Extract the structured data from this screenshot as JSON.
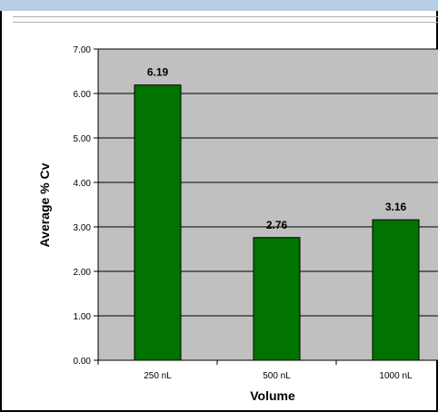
{
  "chart_data": {
    "type": "bar",
    "categories": [
      "250 nL",
      "500 nL",
      "1000 nL"
    ],
    "values": [
      6.19,
      2.76,
      3.16
    ],
    "value_labels": [
      "6.19",
      "2.76",
      "3.16"
    ],
    "xlabel": "Volume",
    "ylabel": "Average % Cv",
    "ylim": [
      0,
      7
    ],
    "yticks": [
      "0.00",
      "1.00",
      "2.00",
      "3.00",
      "4.00",
      "5.00",
      "6.00",
      "7.00"
    ],
    "grid": true,
    "legend": "none",
    "colors": {
      "bar": "#007300",
      "plot_background": "#c0c0c0"
    }
  }
}
